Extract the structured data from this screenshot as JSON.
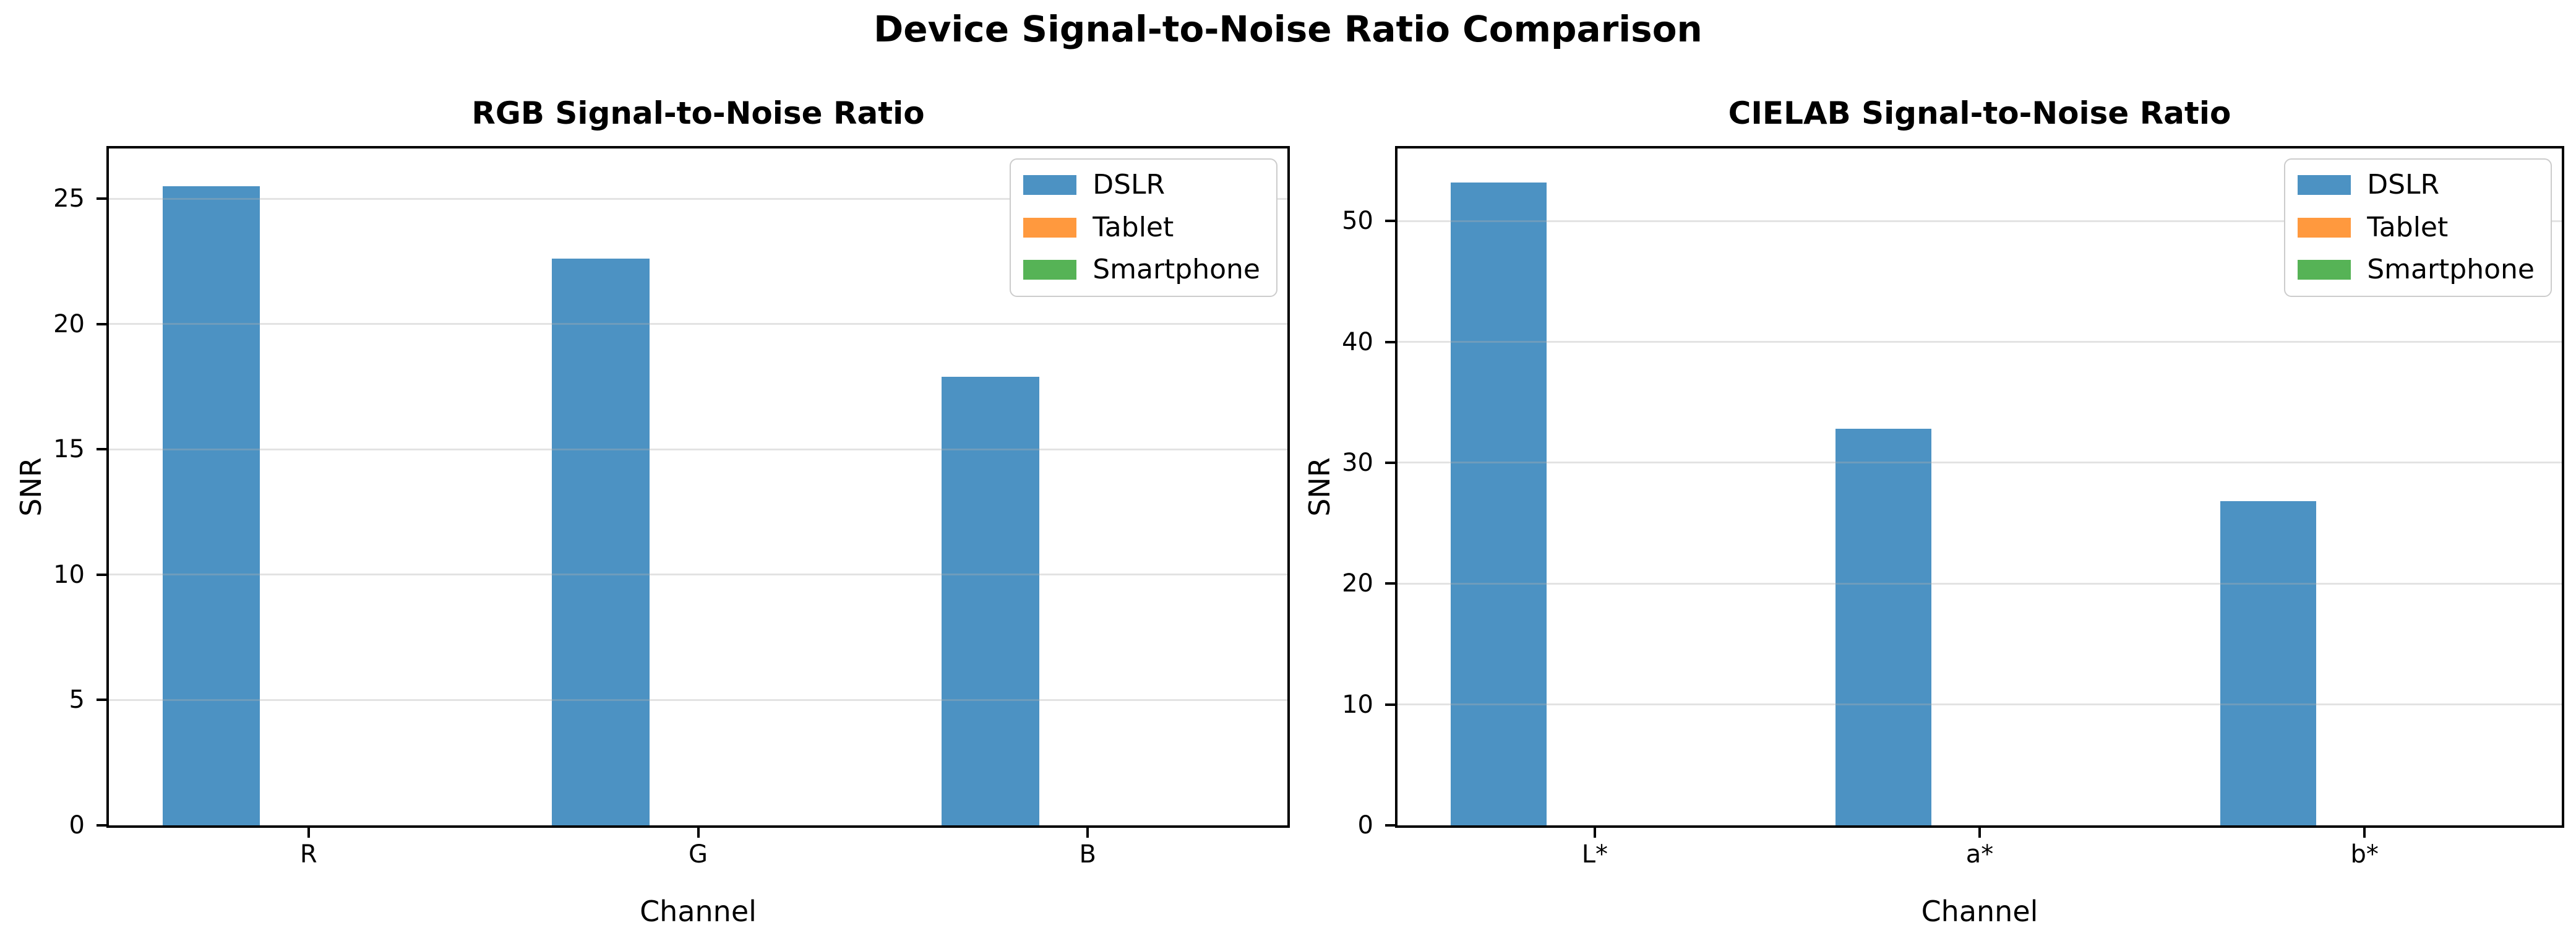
{
  "suptitle": "Device Signal-to-Noise Ratio Comparison",
  "colors": {
    "dslr": "#4C92C3",
    "tablet": "#FF993E",
    "smartphone": "#56B356",
    "grid": "rgba(176,176,176,0.35)",
    "spine": "#000000"
  },
  "chart_data": [
    {
      "type": "bar",
      "title": "RGB Signal-to-Noise Ratio",
      "xlabel": "Channel",
      "ylabel": "SNR",
      "categories": [
        "R",
        "G",
        "B"
      ],
      "series": [
        {
          "name": "DSLR",
          "color": "#4C92C3",
          "values": [
            25.5,
            22.6,
            17.9
          ]
        },
        {
          "name": "Tablet",
          "color": "#FF993E",
          "values": [
            0,
            0,
            0
          ]
        },
        {
          "name": "Smartphone",
          "color": "#56B356",
          "values": [
            0,
            0,
            0
          ]
        }
      ],
      "ylim": [
        0,
        27
      ],
      "yticks": [
        0,
        5,
        10,
        15,
        20,
        25
      ],
      "grid": true,
      "legend_position": "upper right",
      "bar_width": 0.25
    },
    {
      "type": "bar",
      "title": "CIELAB Signal-to-Noise Ratio",
      "xlabel": "Channel",
      "ylabel": "SNR",
      "categories": [
        "L*",
        "a*",
        "b*"
      ],
      "series": [
        {
          "name": "DSLR",
          "color": "#4C92C3",
          "values": [
            53.2,
            32.8,
            26.8
          ]
        },
        {
          "name": "Tablet",
          "color": "#FF993E",
          "values": [
            0,
            0,
            0
          ]
        },
        {
          "name": "Smartphone",
          "color": "#56B356",
          "values": [
            0,
            0,
            0
          ]
        }
      ],
      "ylim": [
        0,
        56
      ],
      "yticks": [
        0,
        10,
        20,
        30,
        40,
        50
      ],
      "grid": true,
      "legend_position": "upper right",
      "bar_width": 0.25
    }
  ]
}
